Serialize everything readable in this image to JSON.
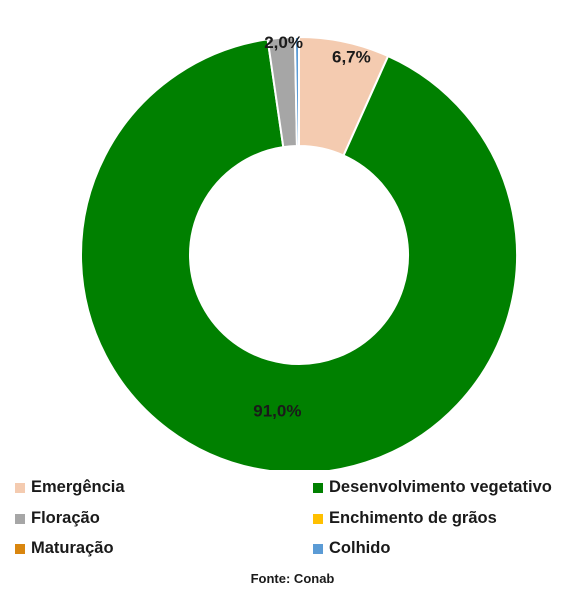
{
  "chart_data": {
    "type": "pie",
    "subtype": "donut",
    "categories": [
      "Emergência",
      "Desenvolvimento vegetativo",
      "Floração",
      "Enchimento de grãos",
      "Maturação",
      "Colhido"
    ],
    "values": [
      6.7,
      91.0,
      2.0,
      0.0,
      0.0,
      0.3
    ],
    "data_labels": [
      "6,7%",
      "91,0%",
      "2,0%",
      "",
      "",
      ""
    ],
    "colors": [
      "#f4cbb0",
      "#008000",
      "#a6a6a6",
      "#ffc000",
      "#d9860f",
      "#5b9bd5"
    ],
    "legend_position": "bottom",
    "source": "Fonte: Conab"
  }
}
